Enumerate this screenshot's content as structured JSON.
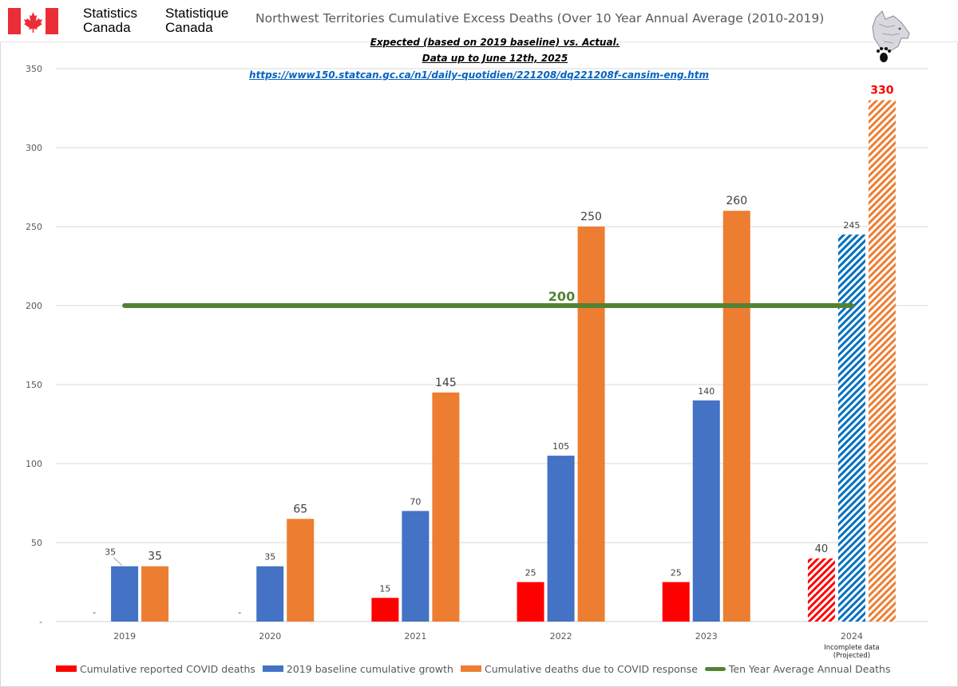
{
  "header": {
    "org_en_line1": "Statistics",
    "org_en_line2": "Canada",
    "org_fr_line1": "Statistique",
    "org_fr_line2": "Canada",
    "logo_icon": "canada-flag-icon",
    "mascot_icon": "wolf-paw-icon"
  },
  "chart_data": {
    "type": "bar",
    "title": "Northwest Territories Cumulative Excess Deaths (Over 10 Year Annual Average (2010-2019)",
    "subtitle_lines": [
      "Expected (based on 2019 baseline) vs. Actual.",
      "Data up to June 12th, 2025"
    ],
    "source_link": "https://www150.statcan.gc.ca/n1/daily-quotidien/221208/dq221208f-cansim-eng.htm",
    "categories": [
      "2019",
      "2020",
      "2021",
      "2022",
      "2023",
      "2024"
    ],
    "category_sublabels": {
      "2024": [
        "Incomplete data",
        "(Projected)"
      ]
    },
    "projected_categories": [
      "2024"
    ],
    "xlabel": "",
    "ylabel": "",
    "ylim": [
      0,
      350
    ],
    "yticks": [
      0,
      50,
      100,
      150,
      200,
      250,
      300,
      350
    ],
    "ytick_labels": [
      "-",
      "50",
      "100",
      "150",
      "200",
      "250",
      "300",
      "350"
    ],
    "grid": true,
    "series": [
      {
        "name": "Cumulative reported COVID deaths",
        "color": "#ff0000",
        "values": [
          0,
          0,
          15,
          25,
          25,
          40
        ],
        "labels": [
          "-",
          "-",
          "15",
          "25",
          "25",
          "40"
        ]
      },
      {
        "name": "2019 baseline cumulative growth",
        "color": "#4472c4",
        "projected_color": "#0070c0",
        "values": [
          35,
          35,
          70,
          105,
          140,
          245
        ],
        "labels": [
          "35",
          "35",
          "70",
          "105",
          "140",
          "245"
        ]
      },
      {
        "name": "Cumulative deaths due to COVID response",
        "color": "#ed7d31",
        "values": [
          35,
          65,
          145,
          250,
          260,
          330
        ],
        "labels": [
          "35",
          "65",
          "145",
          "250",
          "260",
          "330"
        ],
        "highlight_label_color": {
          "2024": "#ff0000"
        }
      }
    ],
    "reference_line": {
      "name": "Ten Year Average Annual Deaths",
      "value": 200,
      "label": "200",
      "color": "#548235"
    },
    "legend_position": "bottom"
  }
}
